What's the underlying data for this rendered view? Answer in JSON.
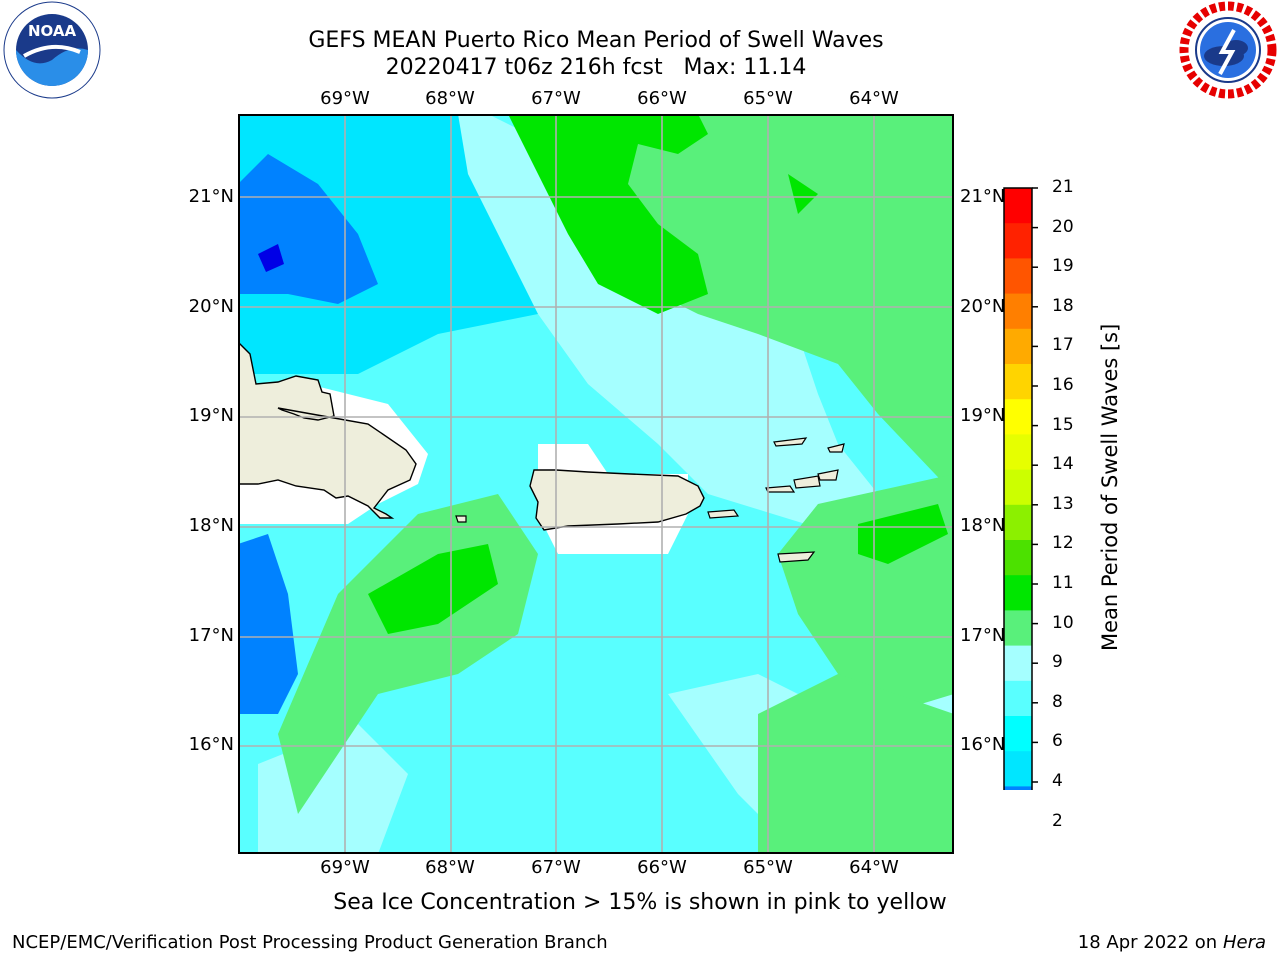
{
  "title_line1": "GEFS MEAN Puerto Rico Mean Period of Swell Waves",
  "title_line2": "20220417 t06z 216h fcst   Max: 11.14",
  "lon_labels": [
    "69°W",
    "68°W",
    "67°W",
    "66°W",
    "65°W",
    "64°W"
  ],
  "lat_labels": [
    "21°N",
    "20°N",
    "19°N",
    "18°N",
    "17°N",
    "16°N"
  ],
  "colorbar": {
    "label": "Mean Period of Swell Waves [s]",
    "ticks": [
      "21",
      "20",
      "19",
      "18",
      "17",
      "16",
      "15",
      "14",
      "13",
      "12",
      "11",
      "10",
      "9",
      "8",
      "6",
      "4",
      "2"
    ],
    "colors": [
      "#ff0000",
      "#ff2200",
      "#ff5500",
      "#ff7f00",
      "#ffaa00",
      "#ffd400",
      "#ffff00",
      "#e6ff00",
      "#ccff00",
      "#8cf000",
      "#4ce100",
      "#00e600",
      "#59f07b",
      "#a5ffff",
      "#59ffff",
      "#00ffff",
      "#00e6ff",
      "#0082ff",
      "#0000e6"
    ]
  },
  "note": "Sea Ice Concentration > 15% is shown in pink to yellow",
  "footer_left": "NCEP/EMC/Verification Post Processing Product Generation Branch",
  "footer_right_date": "18 Apr 2022 on ",
  "footer_right_host": "Hera",
  "logos": {
    "left": "NOAA",
    "right_text": "NATIONAL WEATHER SERVICE"
  },
  "colors": {
    "land": "#eeeedc",
    "grid": "#b0b0b0"
  }
}
